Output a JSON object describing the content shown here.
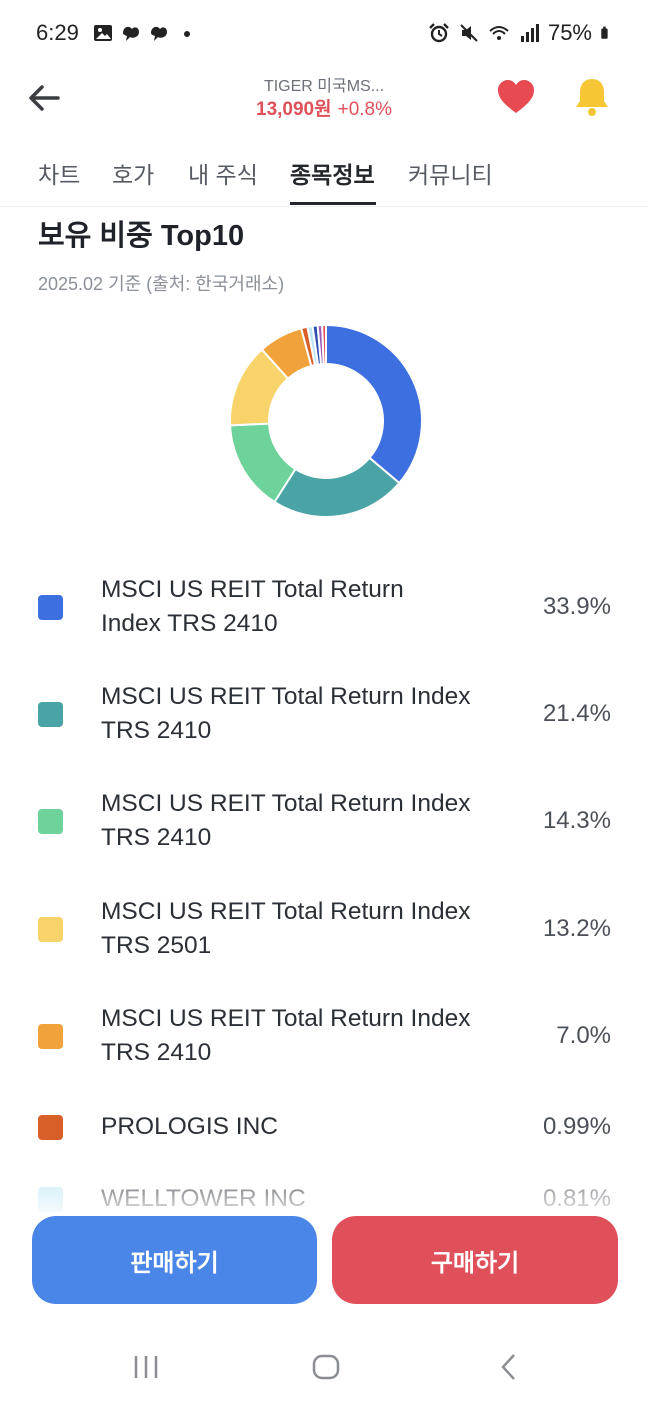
{
  "status_bar": {
    "time": "6:29",
    "battery": "75%",
    "icons": [
      "image-icon",
      "thread-icon",
      "thread-icon",
      "dot-icon",
      "alarm-icon",
      "mute-icon",
      "wifi-icon",
      "signal-icon",
      "battery-icon"
    ]
  },
  "header": {
    "name": "TIGER 미국MS...",
    "price": "13,090원",
    "change": "+0.8%",
    "price_color": "#e0505a"
  },
  "tabs": [
    {
      "label": "차트"
    },
    {
      "label": "호가"
    },
    {
      "label": "내 주식"
    },
    {
      "label": "종목정보",
      "active": true
    },
    {
      "label": "커뮤니티"
    }
  ],
  "section": {
    "title": "보유 비중 Top10",
    "subtitle": "2025.02 기준 (출처: 한국거래소)"
  },
  "chart_data": {
    "type": "pie",
    "donut": true,
    "categories": [
      "MSCI US REIT Total Return Index TRS 2410",
      "MSCI US REIT Total Return Index TRS 2410",
      "MSCI US REIT Total Return Index TRS 2410",
      "MSCI US REIT Total Return Index TRS 2501",
      "MSCI US REIT Total Return Index TRS 2410",
      "PROLOGIS INC",
      "WELLTOWER INC",
      "",
      "",
      ""
    ],
    "values": [
      33.9,
      21.4,
      14.3,
      13.2,
      7.0,
      0.99,
      0.81,
      0.8,
      0.7,
      0.6
    ],
    "colors": [
      "#3d6fe0",
      "#4aa3a5",
      "#6dd39a",
      "#f8d36a",
      "#f2a23a",
      "#d95f28",
      "#bfe6f5",
      "#2f4fb0",
      "#9b59b6",
      "#e0505a"
    ]
  },
  "holdings": [
    {
      "name": "MSCI US REIT Total Return Index TRS 2410",
      "pct": "33.9%",
      "color": "#3d6fe0"
    },
    {
      "name": "MSCI US REIT Total Return Index TRS 2410",
      "pct": "21.4%",
      "color": "#4aa3a5"
    },
    {
      "name": "MSCI US REIT Total Return Index TRS 2410",
      "pct": "14.3%",
      "color": "#6dd39a"
    },
    {
      "name": "MSCI US REIT Total Return Index TRS 2501",
      "pct": "13.2%",
      "color": "#f8d36a"
    },
    {
      "name": "MSCI US REIT Total Return Index TRS 2410",
      "pct": "7.0%",
      "color": "#f2a23a"
    },
    {
      "name": "PROLOGIS INC",
      "pct": "0.99%",
      "color": "#d95f28"
    },
    {
      "name": "WELLTOWER INC",
      "pct": "0.81%",
      "color": "#bfe6f5"
    }
  ],
  "actions": {
    "sell_label": "판매하기",
    "buy_label": "구매하기"
  }
}
